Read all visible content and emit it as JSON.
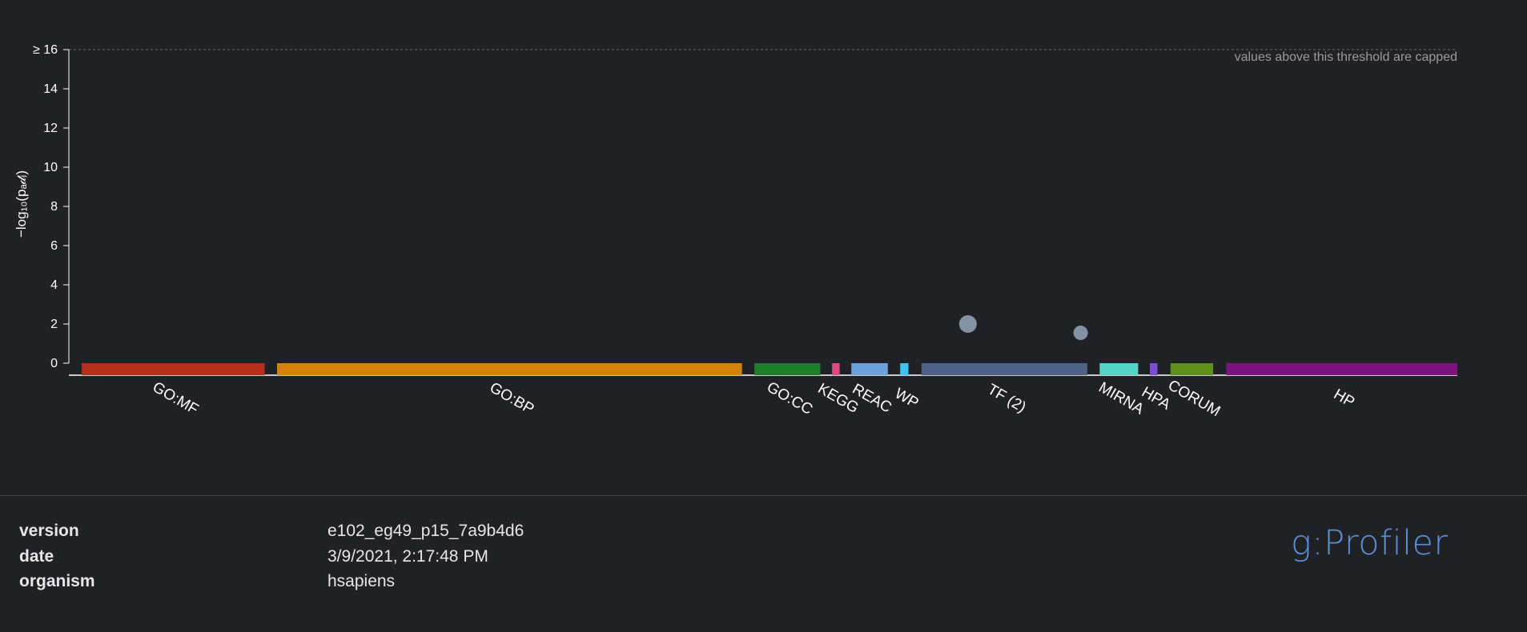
{
  "chart_data": {
    "type": "scatter",
    "ylabel": "−log₁₀(pₐ𝒹ⱼ)",
    "ylim": [
      0,
      16
    ],
    "y_ticks": [
      "0",
      "2",
      "4",
      "6",
      "8",
      "10",
      "12",
      "14",
      "≥ 16"
    ],
    "threshold_note": "values above this threshold are capped",
    "categories": [
      {
        "name": "GO:MF",
        "color": "#b5301c",
        "span": [
          0.0,
          0.133
        ]
      },
      {
        "name": "GO:BP",
        "color": "#d4820b",
        "span": [
          0.142,
          0.48
        ]
      },
      {
        "name": "GO:CC",
        "color": "#1c7d2a",
        "span": [
          0.489,
          0.537
        ]
      },
      {
        "name": "KEGG",
        "color": "#dc4c7c",
        "span": [
          0.5455,
          0.551
        ]
      },
      {
        "name": "REAC",
        "color": "#6ea2dc",
        "span": [
          0.5595,
          0.586
        ]
      },
      {
        "name": "WP",
        "color": "#3fc4f0",
        "span": [
          0.595,
          0.601
        ]
      },
      {
        "name": "TF (2)",
        "color": "#4e6288",
        "span": [
          0.6105,
          0.731
        ]
      },
      {
        "name": "MIRNA",
        "color": "#53d4c4",
        "span": [
          0.74,
          0.768
        ]
      },
      {
        "name": "HPA",
        "color": "#7b4ed4",
        "span": [
          0.7765,
          0.782
        ]
      },
      {
        "name": "CORUM",
        "color": "#5f8f1a",
        "span": [
          0.7915,
          0.8225
        ]
      },
      {
        "name": "HP",
        "color": "#7a137e",
        "span": [
          0.832,
          1.0
        ]
      }
    ],
    "points": [
      {
        "category": "TF (2)",
        "y": 2.0,
        "size": "large",
        "color": "#8293a8"
      },
      {
        "category": "TF (2)",
        "y": 1.55,
        "size": "small",
        "color": "#8293a8"
      }
    ]
  },
  "footer": {
    "rows": [
      {
        "key": "version",
        "value": "e102_eg49_p15_7a9b4d6"
      },
      {
        "key": "date",
        "value": "3/9/2021, 2:17:48 PM"
      },
      {
        "key": "organism",
        "value": "hsapiens"
      }
    ],
    "brand": "g:Profiler"
  }
}
